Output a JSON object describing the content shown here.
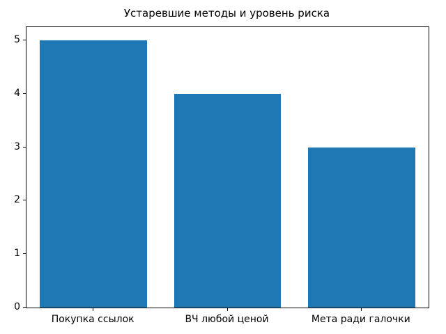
{
  "chart_data": {
    "type": "bar",
    "title": "Устаревшие методы и уровень риска",
    "categories": [
      "Покупка ссылок",
      "ВЧ любой ценой",
      "Мета ради галочки"
    ],
    "values": [
      5,
      4,
      3
    ],
    "xlabel": "",
    "ylabel": "",
    "ylim": [
      0,
      5.25
    ],
    "yticks": [
      0,
      1,
      2,
      3,
      4,
      5
    ],
    "bar_color": "#1f77b4",
    "bar_width_fraction": 0.8,
    "background_color": "#ffffff",
    "spine_color": "#000000",
    "grid": false,
    "legend_position": "none"
  }
}
